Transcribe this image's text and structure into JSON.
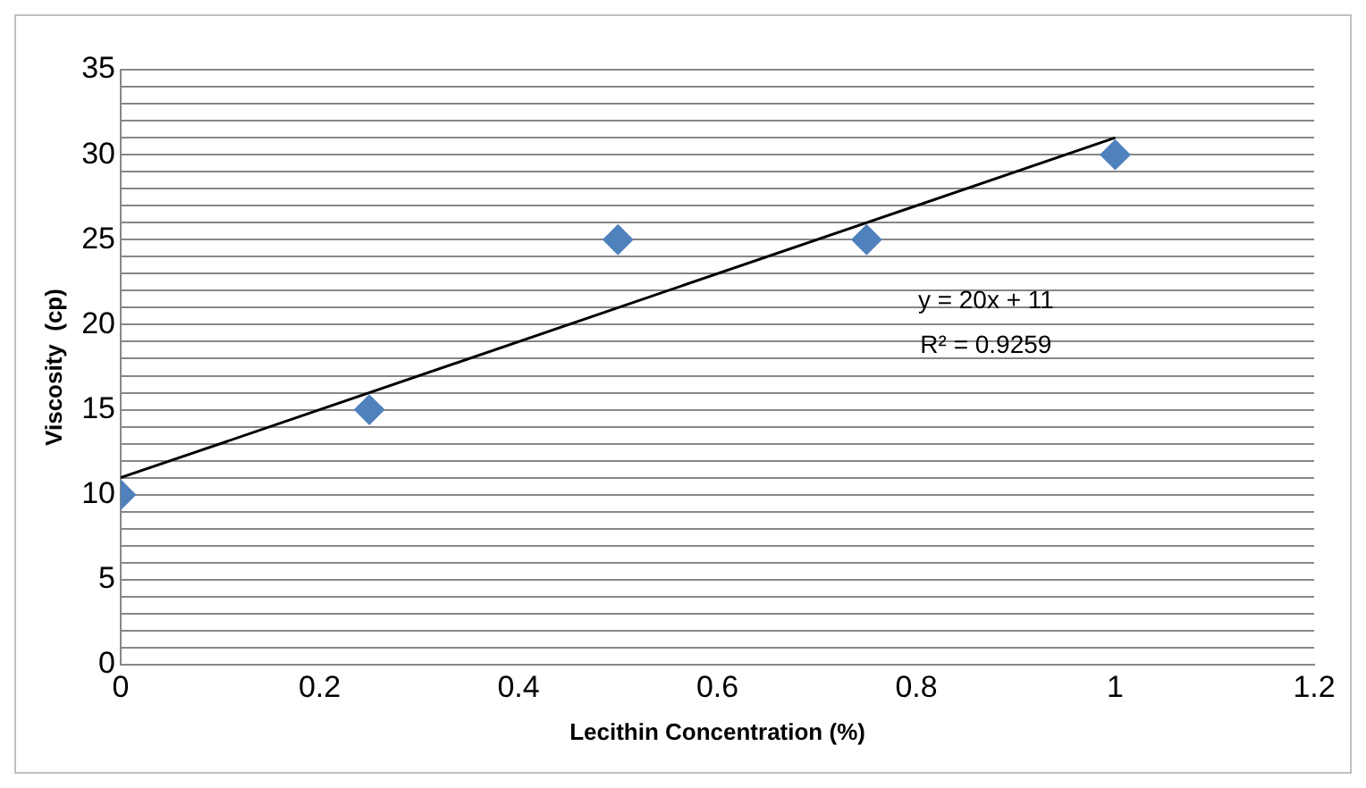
{
  "chart_data": {
    "type": "scatter",
    "xlabel": "Lecithin Concentration (%)",
    "ylabel": "Viscosity  (cp)",
    "series": [
      {
        "color": "#4f81bd",
        "x": [
          0,
          0.25,
          0.5,
          0.75,
          1
        ],
        "values": [
          10,
          15,
          25,
          25,
          30
        ],
        "marker": "diamond"
      },
      {
        "type": "line",
        "color": "#000000",
        "x": [
          0,
          1
        ],
        "values": [
          11,
          31
        ],
        "marker": "none",
        "line_style": "solid"
      }
    ],
    "xlim": [
      0,
      1.2
    ],
    "xticks": [
      0,
      0.2,
      0.4,
      0.6,
      0.8,
      1,
      1.2
    ],
    "ylim": [
      0,
      35
    ],
    "yticks": [
      0,
      {
        "value": 1,
        "label": null
      },
      {
        "value": 2,
        "label": null
      },
      {
        "value": 3,
        "label": null
      },
      {
        "value": 4,
        "label": null
      },
      5,
      {
        "value": 6,
        "label": null
      },
      {
        "value": 7,
        "label": null
      },
      {
        "value": 8,
        "label": null
      },
      {
        "value": 9,
        "label": null
      },
      10,
      {
        "value": 11,
        "label": null
      },
      {
        "value": 12,
        "label": null
      },
      {
        "value": 13,
        "label": null
      },
      {
        "value": 14,
        "label": null
      },
      15,
      {
        "value": 16,
        "label": null
      },
      {
        "value": 17,
        "label": null
      },
      {
        "value": 18,
        "label": null
      },
      {
        "value": 19,
        "label": null
      },
      20,
      {
        "value": 21,
        "label": null
      },
      {
        "value": 22,
        "label": null
      },
      {
        "value": 23,
        "label": null
      },
      {
        "value": 24,
        "label": null
      },
      25,
      {
        "value": 26,
        "label": null
      },
      {
        "value": 27,
        "label": null
      },
      {
        "value": 28,
        "label": null
      },
      {
        "value": 29,
        "label": null
      },
      30,
      {
        "value": 31,
        "label": null
      },
      {
        "value": 32,
        "label": null
      },
      {
        "value": 33,
        "label": null
      },
      {
        "value": 34,
        "label": null
      },
      35
    ],
    "grid": "y",
    "legend": false,
    "annotations": [
      "y = 20x + 11",
      "R² = 0.9259"
    ]
  }
}
